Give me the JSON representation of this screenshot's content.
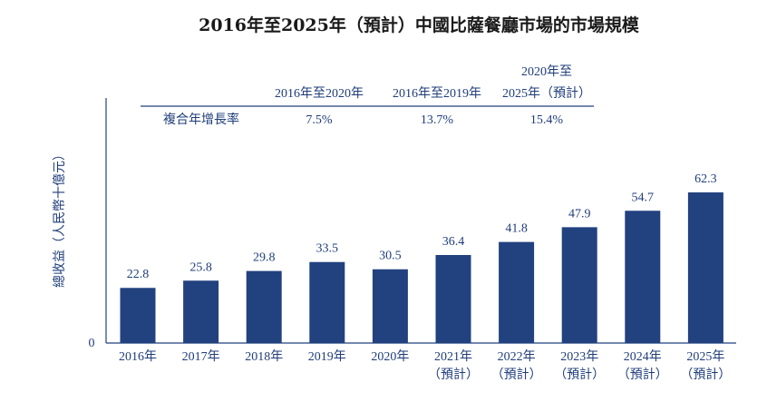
{
  "chart_data": {
    "type": "bar",
    "title": "2016年至2025年（預計）中國比薩餐廳市場的市場規模",
    "ylabel": "總收益（人民幣十億元）",
    "y_zero_label": "0",
    "ylim": [
      0,
      70
    ],
    "categories": [
      {
        "year": "2016年",
        "note": ""
      },
      {
        "year": "2017年",
        "note": ""
      },
      {
        "year": "2018年",
        "note": ""
      },
      {
        "year": "2019年",
        "note": ""
      },
      {
        "year": "2020年",
        "note": ""
      },
      {
        "year": "2021年",
        "note": "（預計）"
      },
      {
        "year": "2022年",
        "note": "（預計）"
      },
      {
        "year": "2023年",
        "note": "（預計）"
      },
      {
        "year": "2024年",
        "note": "（預計）"
      },
      {
        "year": "2025年",
        "note": "（預計）"
      }
    ],
    "values": [
      22.8,
      25.8,
      29.8,
      33.5,
      30.5,
      36.4,
      41.8,
      47.9,
      54.7,
      62.3
    ],
    "value_labels": [
      "22.8",
      "25.8",
      "29.8",
      "33.5",
      "30.5",
      "36.4",
      "41.8",
      "47.9",
      "54.7",
      "62.3"
    ],
    "bar_color": "#22417f",
    "cagr_table": {
      "row_label": "複合年增長率",
      "columns": [
        {
          "header": [
            "2016年至2020年"
          ],
          "value": "7.5%"
        },
        {
          "header": [
            "2016年至2019年"
          ],
          "value": "13.7%"
        },
        {
          "header": [
            "2020年至",
            "2025年（預計）"
          ],
          "value": "15.4%"
        }
      ]
    }
  }
}
